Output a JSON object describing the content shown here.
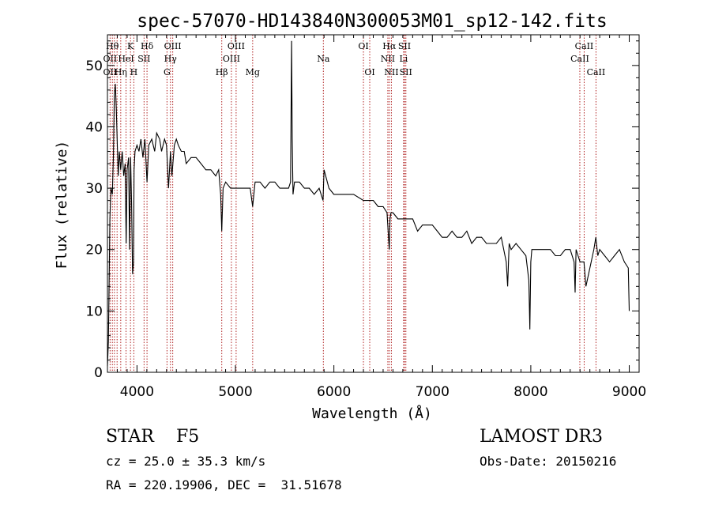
{
  "chart_data": {
    "type": "line",
    "title": "spec-57070-HD143840N300053M01_sp12-142.fits",
    "xlabel": "Wavelength (Å)",
    "ylabel": "Flux (relative)",
    "xlim": [
      3700,
      9100
    ],
    "ylim": [
      0,
      55
    ],
    "xticks": [
      4000,
      5000,
      6000,
      7000,
      8000,
      9000
    ],
    "yticks": [
      0,
      10,
      20,
      30,
      40,
      50
    ],
    "grid": false,
    "series": [
      {
        "name": "flux",
        "x": [
          3700,
          3710,
          3715,
          3725,
          3735,
          3750,
          3760,
          3770,
          3780,
          3790,
          3800,
          3810,
          3820,
          3835,
          3850,
          3865,
          3880,
          3890,
          3900,
          3915,
          3925,
          3935,
          3945,
          3955,
          3965,
          3970,
          3980,
          4000,
          4020,
          4040,
          4060,
          4080,
          4102,
          4120,
          4150,
          4180,
          4200,
          4230,
          4250,
          4280,
          4300,
          4320,
          4340,
          4355,
          4380,
          4400,
          4420,
          4450,
          4480,
          4500,
          4550,
          4600,
          4650,
          4700,
          4750,
          4800,
          4830,
          4850,
          4861,
          4875,
          4900,
          4950,
          5000,
          5050,
          5100,
          5150,
          5175,
          5200,
          5250,
          5300,
          5350,
          5400,
          5450,
          5500,
          5540,
          5560,
          5570,
          5577,
          5585,
          5600,
          5650,
          5700,
          5750,
          5800,
          5850,
          5890,
          5900,
          5950,
          6000,
          6100,
          6200,
          6300,
          6400,
          6450,
          6500,
          6540,
          6555,
          6563,
          6570,
          6580,
          6600,
          6650,
          6700,
          6750,
          6800,
          6850,
          6900,
          6950,
          7000,
          7050,
          7100,
          7150,
          7200,
          7250,
          7300,
          7350,
          7400,
          7450,
          7500,
          7550,
          7600,
          7650,
          7700,
          7750,
          7765,
          7780,
          7800,
          7850,
          7900,
          7950,
          7980,
          7990,
          8000,
          8010,
          8050,
          8100,
          8150,
          8200,
          8250,
          8300,
          8350,
          8400,
          8440,
          8450,
          8460,
          8480,
          8500,
          8540,
          8560,
          8600,
          8640,
          8660,
          8680,
          8700,
          8750,
          8800,
          8850,
          8900,
          8950,
          8990,
          9000
        ],
        "y": [
          1,
          5,
          12,
          25,
          30,
          29,
          35,
          45,
          47,
          43,
          37,
          32,
          36,
          33,
          36,
          32,
          34,
          21,
          33,
          35,
          20,
          35,
          28,
          16,
          18,
          33,
          36,
          37,
          36,
          38,
          35,
          38,
          31,
          37,
          38,
          36,
          39,
          38,
          36,
          38,
          37,
          30,
          36,
          32,
          37,
          38,
          37,
          36,
          36,
          34,
          35,
          35,
          34,
          33,
          33,
          32,
          33,
          29,
          23,
          30,
          31,
          30,
          30,
          30,
          30,
          30,
          27,
          31,
          31,
          30,
          31,
          31,
          30,
          30,
          30,
          31,
          54,
          38,
          29,
          31,
          31,
          30,
          30,
          29,
          30,
          28,
          33,
          30,
          29,
          29,
          29,
          28,
          28,
          27,
          27,
          26,
          22,
          20,
          25,
          26,
          26,
          25,
          25,
          25,
          25,
          23,
          24,
          24,
          24,
          23,
          22,
          22,
          23,
          22,
          22,
          23,
          21,
          22,
          22,
          21,
          21,
          21,
          22,
          18,
          14,
          21,
          20,
          21,
          20,
          19,
          15,
          7,
          18,
          20,
          20,
          20,
          20,
          20,
          19,
          19,
          20,
          20,
          18,
          13,
          20,
          19,
          18,
          18,
          14,
          17,
          20,
          22,
          19,
          20,
          19,
          18,
          19,
          20,
          18,
          17,
          10
        ]
      }
    ],
    "lines": [
      {
        "label": "Hθ",
        "x": 3750,
        "row": 1
      },
      {
        "label": "OII",
        "x": 3727,
        "row": 2
      },
      {
        "label": "OII",
        "x": 3727,
        "row": 3
      },
      {
        "label": "Hη",
        "x": 3835,
        "row": 3
      },
      {
        "label": "K",
        "x": 3934,
        "row": 1
      },
      {
        "label": "HeI",
        "x": 3889,
        "row": 2
      },
      {
        "label": "H",
        "x": 3968,
        "row": 3
      },
      {
        "label": "Hδ",
        "x": 4102,
        "row": 1
      },
      {
        "label": "SII",
        "x": 4072,
        "row": 2
      },
      {
        "label": "OIII",
        "x": 4363,
        "row": 1
      },
      {
        "label": "Hγ",
        "x": 4340,
        "row": 2
      },
      {
        "label": "G",
        "x": 4305,
        "row": 3
      },
      {
        "label": "Hβ",
        "x": 4861,
        "row": 3
      },
      {
        "label": "OIII",
        "x": 4959,
        "row": 2
      },
      {
        "label": "OIII",
        "x": 5007,
        "row": 1
      },
      {
        "label": "Mg",
        "x": 5175,
        "row": 3
      },
      {
        "label": "Na",
        "x": 5893,
        "row": 2
      },
      {
        "label": "OI",
        "x": 6300,
        "row": 1
      },
      {
        "label": "OI",
        "x": 6364,
        "row": 3
      },
      {
        "label": "Hα",
        "x": 6563,
        "row": 1
      },
      {
        "label": "NII",
        "x": 6548,
        "row": 2
      },
      {
        "label": "NII",
        "x": 6584,
        "row": 3
      },
      {
        "label": "SII",
        "x": 6717,
        "row": 1
      },
      {
        "label": "Li",
        "x": 6708,
        "row": 2
      },
      {
        "label": "SII",
        "x": 6731,
        "row": 3
      },
      {
        "label": "CaII",
        "x": 8542,
        "row": 1
      },
      {
        "label": "CaII",
        "x": 8498,
        "row": 2
      },
      {
        "label": "CaII",
        "x": 8662,
        "row": 3
      }
    ],
    "extra_line_x": [
      3798,
      3771
    ]
  },
  "info": {
    "class_text": "STAR    F5",
    "survey": "LAMOST DR3",
    "redshift": "cz = 25.0 ± 35.3 km/s",
    "obs_date": "Obs-Date: 20150216",
    "coords": "RA = 220.19906, DEC =  31.51678"
  },
  "colors": {
    "line_marker": "#b02020",
    "spectrum": "#000000"
  }
}
